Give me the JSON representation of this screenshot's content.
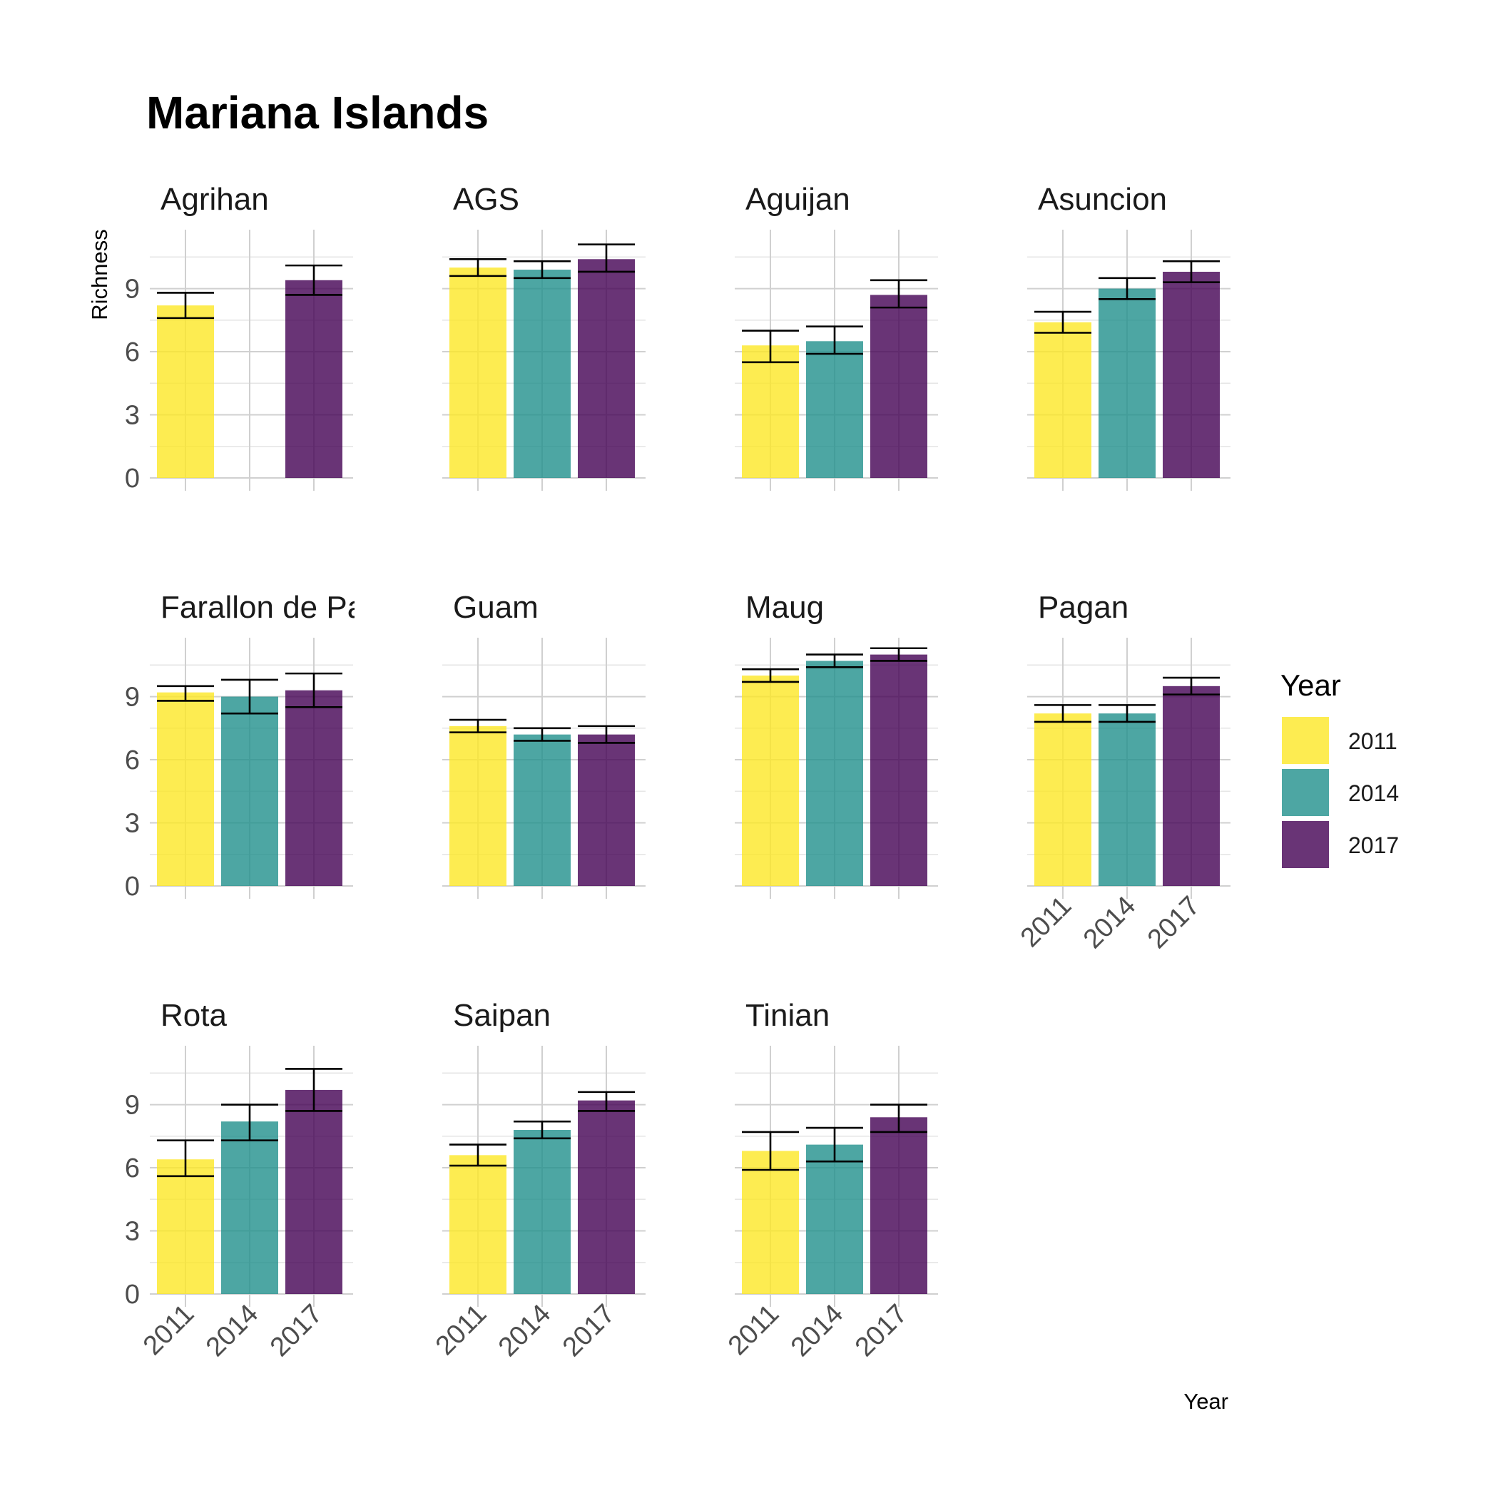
{
  "chart_data": {
    "type": "bar",
    "title": "Mariana Islands",
    "xlabel": "Year",
    "ylabel": "Richness",
    "ylim": [
      0,
      11.8
    ],
    "yticks": [
      0,
      3,
      6,
      9
    ],
    "categories": [
      "2011",
      "2014",
      "2017"
    ],
    "legend": {
      "title": "Year",
      "position": "right",
      "entries": [
        {
          "label": "2011",
          "color": "#fde725"
        },
        {
          "label": "2014",
          "color": "#21908c"
        },
        {
          "label": "2017",
          "color": "#440154"
        }
      ]
    },
    "bar_alpha": 0.8,
    "error_bars": true,
    "grid": true,
    "panels": [
      {
        "name": "Agrihan",
        "strip_label": "Agrihan",
        "values": [
          8.2,
          null,
          9.4
        ],
        "lower": [
          7.6,
          null,
          8.7
        ],
        "upper": [
          8.8,
          null,
          10.1
        ]
      },
      {
        "name": "AGS",
        "strip_label": "AGS",
        "values": [
          10.0,
          9.9,
          10.4
        ],
        "lower": [
          9.6,
          9.5,
          9.8
        ],
        "upper": [
          10.4,
          10.3,
          11.1
        ]
      },
      {
        "name": "Aguijan",
        "strip_label": "Aguijan",
        "values": [
          6.3,
          6.5,
          8.7
        ],
        "lower": [
          5.5,
          5.9,
          8.1
        ],
        "upper": [
          7.0,
          7.2,
          9.4
        ]
      },
      {
        "name": "Asuncion",
        "strip_label": "Asuncion",
        "values": [
          7.4,
          9.0,
          9.8
        ],
        "lower": [
          6.9,
          8.5,
          9.3
        ],
        "upper": [
          7.9,
          9.5,
          10.3
        ]
      },
      {
        "name": "Farallon de Pajaros",
        "strip_label": "Farallon de Pajaros",
        "values": [
          9.2,
          9.0,
          9.3
        ],
        "lower": [
          8.8,
          8.2,
          8.5
        ],
        "upper": [
          9.5,
          9.8,
          10.1
        ]
      },
      {
        "name": "Guam",
        "strip_label": "Guam",
        "values": [
          7.6,
          7.2,
          7.2
        ],
        "lower": [
          7.3,
          6.9,
          6.8
        ],
        "upper": [
          7.9,
          7.5,
          7.6
        ]
      },
      {
        "name": "Maug",
        "strip_label": "Maug",
        "values": [
          10.0,
          10.7,
          11.0
        ],
        "lower": [
          9.7,
          10.4,
          10.7
        ],
        "upper": [
          10.3,
          11.0,
          11.3
        ]
      },
      {
        "name": "Pagan",
        "strip_label": "Pagan",
        "values": [
          8.2,
          8.2,
          9.5
        ],
        "lower": [
          7.8,
          7.8,
          9.1
        ],
        "upper": [
          8.6,
          8.6,
          9.9
        ]
      },
      {
        "name": "Rota",
        "strip_label": "Rota",
        "values": [
          6.4,
          8.2,
          9.7
        ],
        "lower": [
          5.6,
          7.3,
          8.7
        ],
        "upper": [
          7.3,
          9.0,
          10.7
        ]
      },
      {
        "name": "Saipan",
        "strip_label": "Saipan",
        "values": [
          6.6,
          7.8,
          9.2
        ],
        "lower": [
          6.1,
          7.4,
          8.7
        ],
        "upper": [
          7.1,
          8.2,
          9.6
        ]
      },
      {
        "name": "Tinian",
        "strip_label": "Tinian",
        "values": [
          6.8,
          7.1,
          8.4
        ],
        "lower": [
          5.9,
          6.3,
          7.7
        ],
        "upper": [
          7.7,
          7.9,
          9.0
        ]
      }
    ],
    "x_tick_labels_shown_on": [
      "Pagan",
      "Rota",
      "Saipan",
      "Tinian"
    ],
    "y_tick_labels_shown_on": [
      "Agrihan",
      "Farallon de Pajaros",
      "Rota"
    ]
  }
}
